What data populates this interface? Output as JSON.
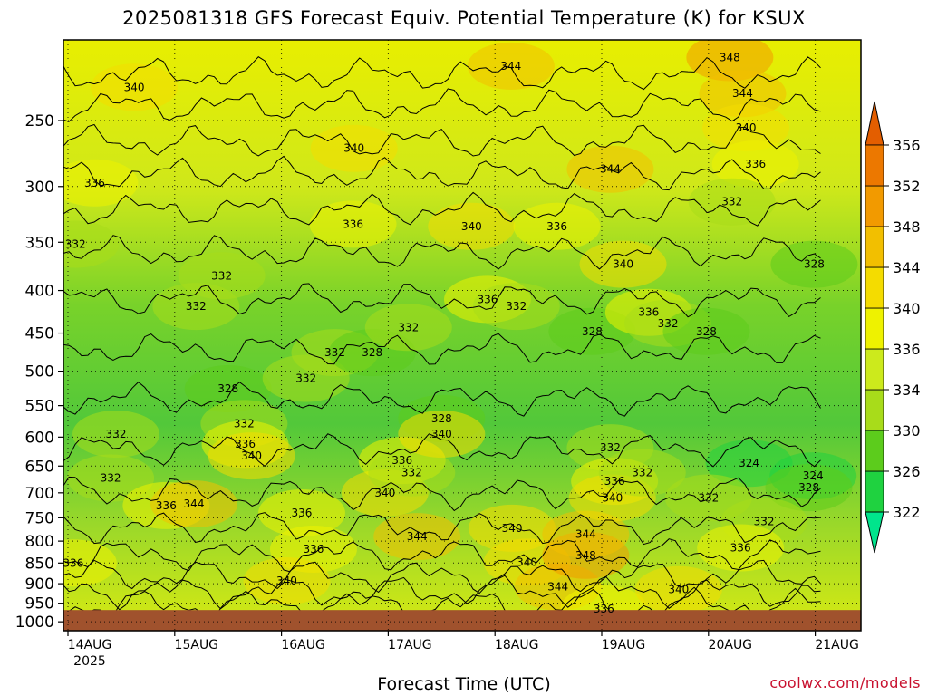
{
  "title": "2025081318 GFS Forecast Equiv. Potential Temperature (K) for KSUX",
  "credit": "coolwx.com/models",
  "chart_data": {
    "type": "heatmap",
    "title": "2025081318 GFS Forecast Equiv. Potential Temperature (K) for KSUX",
    "xlabel": "Forecast Time (UTC)",
    "ylabel": "",
    "year_label": "2025",
    "x_ticks": [
      "14AUG",
      "15AUG",
      "16AUG",
      "17AUG",
      "18AUG",
      "19AUG",
      "20AUG",
      "21AUG"
    ],
    "y_ticks": [
      250,
      300,
      350,
      400,
      450,
      500,
      550,
      600,
      650,
      700,
      750,
      800,
      850,
      900,
      950,
      1000
    ],
    "y_scale": "log-pressure",
    "y_range": [
      1025,
      200
    ],
    "grid": true,
    "colorbar": {
      "levels": [
        322,
        326,
        330,
        334,
        336,
        340,
        344,
        348,
        352,
        356
      ],
      "colors": [
        "#00e58c",
        "#1fd240",
        "#5ccc1c",
        "#a8dc1a",
        "#ccea1c",
        "#eef200",
        "#f4dc00",
        "#f2bf00",
        "#f29a00",
        "#ec7800",
        "#e35e00"
      ],
      "extend": "both"
    },
    "ground_color": "#a0522d",
    "contour_labels": [
      {
        "t": 0.62,
        "p": 228,
        "v": 340
      },
      {
        "t": 0.25,
        "p": 297,
        "v": 336
      },
      {
        "t": 0.07,
        "p": 352,
        "v": 332
      },
      {
        "t": 1.2,
        "p": 418,
        "v": 332
      },
      {
        "t": 1.44,
        "p": 384,
        "v": 332
      },
      {
        "t": 0.45,
        "p": 595,
        "v": 332
      },
      {
        "t": 0.4,
        "p": 672,
        "v": 332
      },
      {
        "t": 1.5,
        "p": 525,
        "v": 328
      },
      {
        "t": 1.65,
        "p": 578,
        "v": 332
      },
      {
        "t": 1.66,
        "p": 612,
        "v": 336
      },
      {
        "t": 1.72,
        "p": 632,
        "v": 340
      },
      {
        "t": 0.92,
        "p": 725,
        "v": 336
      },
      {
        "t": 1.18,
        "p": 722,
        "v": 344
      },
      {
        "t": 0.05,
        "p": 850,
        "v": 336
      },
      {
        "t": 2.23,
        "p": 510,
        "v": 332
      },
      {
        "t": 2.5,
        "p": 475,
        "v": 332
      },
      {
        "t": 2.85,
        "p": 475,
        "v": 328
      },
      {
        "t": 2.68,
        "p": 270,
        "v": 340
      },
      {
        "t": 2.67,
        "p": 333,
        "v": 336
      },
      {
        "t": 3.19,
        "p": 443,
        "v": 332
      },
      {
        "t": 2.19,
        "p": 740,
        "v": 336
      },
      {
        "t": 2.3,
        "p": 818,
        "v": 336
      },
      {
        "t": 2.05,
        "p": 893,
        "v": 340
      },
      {
        "t": 2.97,
        "p": 700,
        "v": 340
      },
      {
        "t": 3.13,
        "p": 640,
        "v": 336
      },
      {
        "t": 3.22,
        "p": 662,
        "v": 332
      },
      {
        "t": 3.27,
        "p": 790,
        "v": 344
      },
      {
        "t": 3.5,
        "p": 570,
        "v": 328
      },
      {
        "t": 3.5,
        "p": 595,
        "v": 340
      },
      {
        "t": 3.78,
        "p": 335,
        "v": 340
      },
      {
        "t": 3.93,
        "p": 410,
        "v": 336
      },
      {
        "t": 4.2,
        "p": 418,
        "v": 332
      },
      {
        "t": 4.58,
        "p": 335,
        "v": 336
      },
      {
        "t": 4.16,
        "p": 772,
        "v": 340
      },
      {
        "t": 4.3,
        "p": 848,
        "v": 340
      },
      {
        "t": 4.59,
        "p": 908,
        "v": 344
      },
      {
        "t": 4.85,
        "p": 832,
        "v": 348
      },
      {
        "t": 4.85,
        "p": 785,
        "v": 344
      },
      {
        "t": 4.91,
        "p": 448,
        "v": 328
      },
      {
        "t": 4.15,
        "p": 215,
        "v": 344
      },
      {
        "t": 5.08,
        "p": 286,
        "v": 344
      },
      {
        "t": 5.2,
        "p": 372,
        "v": 340
      },
      {
        "t": 5.08,
        "p": 618,
        "v": 332
      },
      {
        "t": 5.12,
        "p": 678,
        "v": 336
      },
      {
        "t": 5.1,
        "p": 710,
        "v": 340
      },
      {
        "t": 5.38,
        "p": 662,
        "v": 332
      },
      {
        "t": 5.44,
        "p": 425,
        "v": 336
      },
      {
        "t": 5.62,
        "p": 438,
        "v": 332
      },
      {
        "t": 5.98,
        "p": 448,
        "v": 328
      },
      {
        "t": 5.02,
        "p": 965,
        "v": 336
      },
      {
        "t": 5.72,
        "p": 915,
        "v": 340
      },
      {
        "t": 6.2,
        "p": 210,
        "v": 348
      },
      {
        "t": 6.32,
        "p": 232,
        "v": 344
      },
      {
        "t": 6.35,
        "p": 255,
        "v": 340
      },
      {
        "t": 6.44,
        "p": 282,
        "v": 336
      },
      {
        "t": 6.22,
        "p": 313,
        "v": 332
      },
      {
        "t": 6.99,
        "p": 372,
        "v": 328
      },
      {
        "t": 6.38,
        "p": 645,
        "v": 324
      },
      {
        "t": 6.98,
        "p": 668,
        "v": 324
      },
      {
        "t": 6.94,
        "p": 690,
        "v": 328
      },
      {
        "t": 6.0,
        "p": 710,
        "v": 332
      },
      {
        "t": 6.52,
        "p": 758,
        "v": 332
      },
      {
        "t": 6.3,
        "p": 815,
        "v": 336
      }
    ]
  }
}
